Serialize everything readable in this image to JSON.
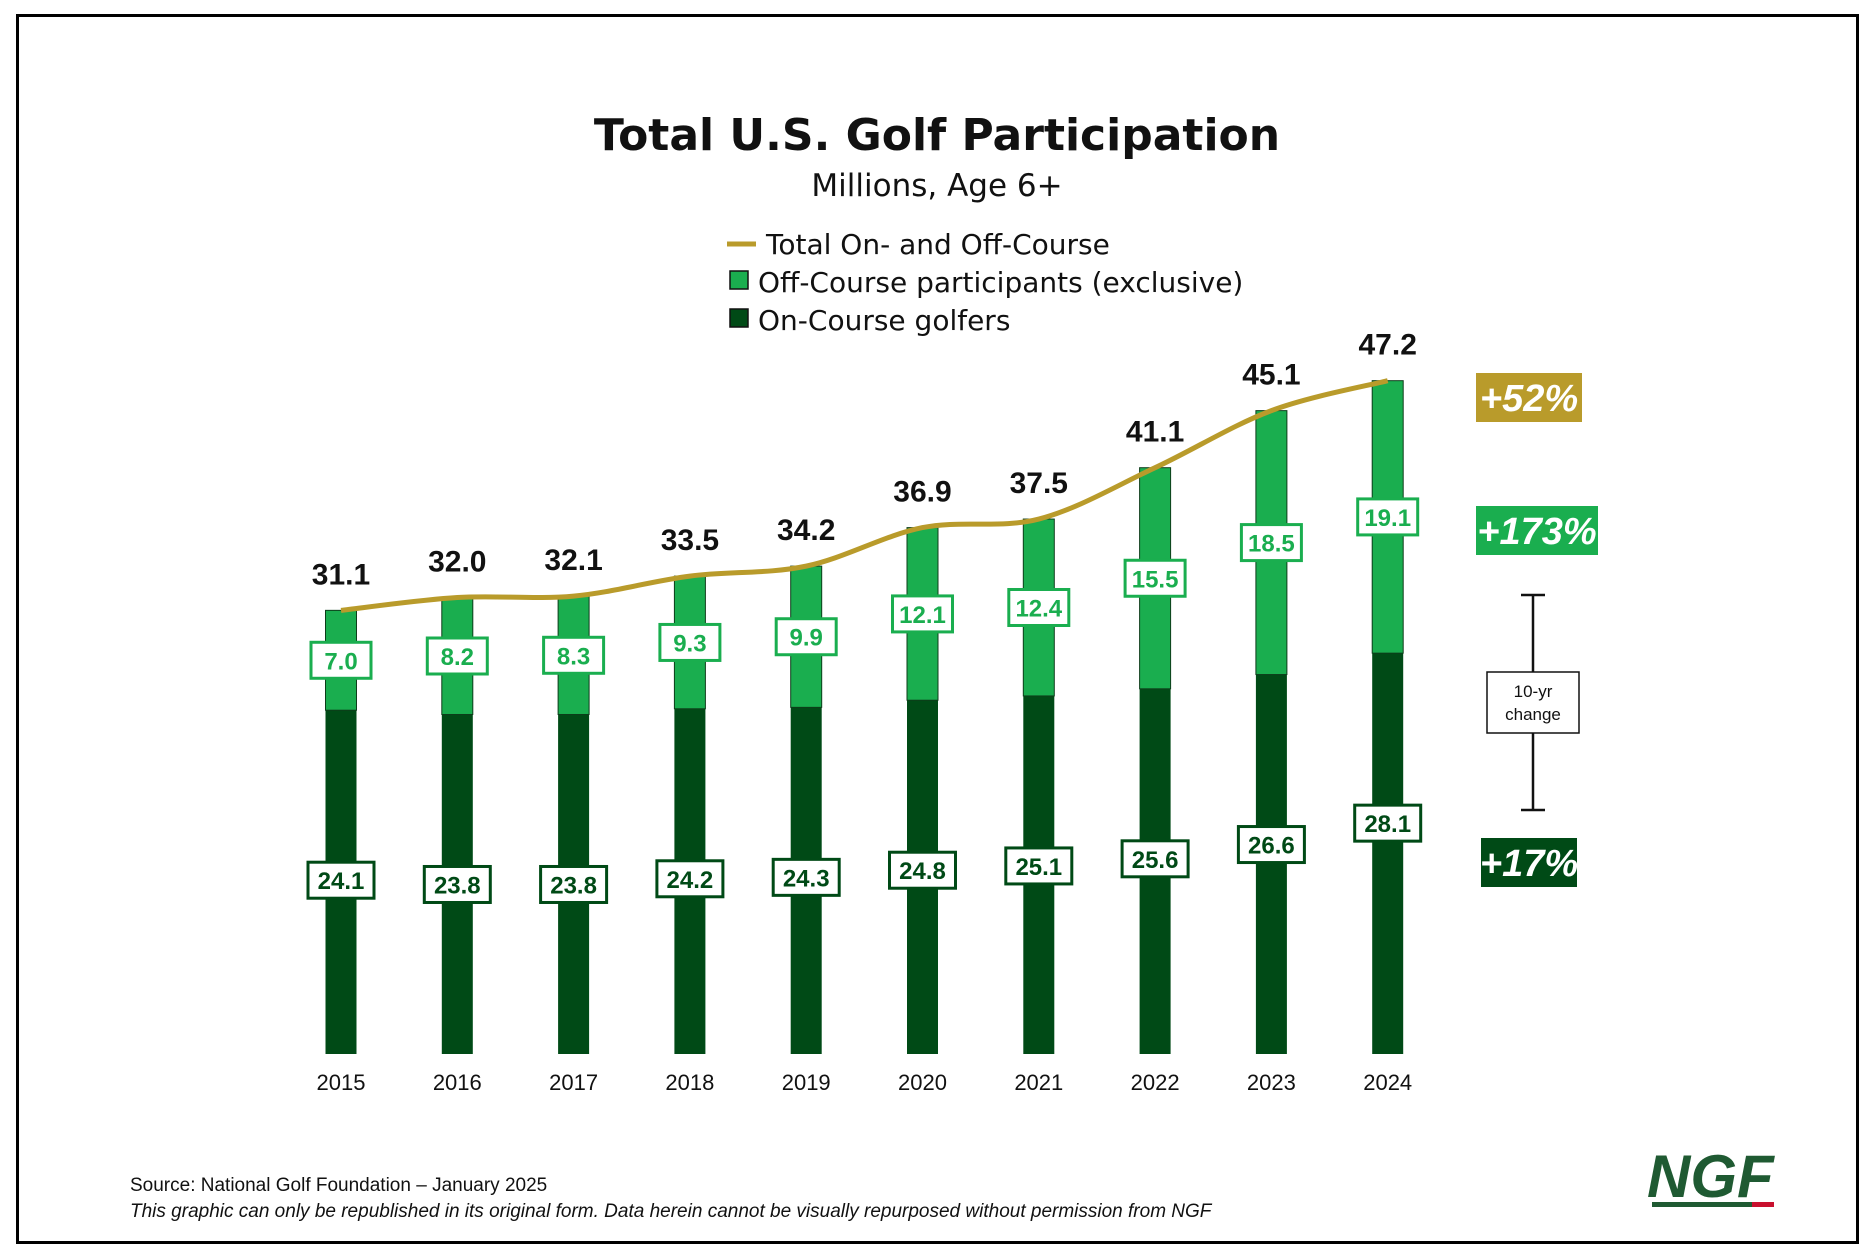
{
  "chart_data": {
    "type": "bar",
    "title": "Total U.S. Golf Participation",
    "subtitle": "Millions, Age 6+",
    "categories": [
      "2015",
      "2016",
      "2017",
      "2018",
      "2019",
      "2020",
      "2021",
      "2022",
      "2023",
      "2024"
    ],
    "series": [
      {
        "name": "On-Course golfers",
        "values": [
          24.1,
          23.8,
          23.8,
          24.2,
          24.3,
          24.8,
          25.1,
          25.6,
          26.6,
          28.1
        ],
        "color": "#004a16",
        "style": "stacked-bar"
      },
      {
        "name": "Off-Course participants (exclusive)",
        "values": [
          7.0,
          8.2,
          8.3,
          9.3,
          9.9,
          12.1,
          12.4,
          15.5,
          18.5,
          19.1
        ],
        "color": "#1aae4f",
        "style": "stacked-bar"
      },
      {
        "name": "Total On- and Off-Course",
        "values": [
          31.1,
          32.0,
          32.1,
          33.5,
          34.2,
          36.9,
          37.5,
          41.1,
          45.1,
          47.2
        ],
        "color": "#b99b2b",
        "style": "line"
      }
    ],
    "legend": [
      "Total On- and Off-Course",
      "Off-Course participants (exclusive)",
      "On-Course golfers"
    ],
    "legend_position": "top-center",
    "ylim": [
      0,
      49
    ],
    "grid": false,
    "annotations": {
      "bracket_label_line1": "10-yr",
      "bracket_label_line2": "change",
      "changes": [
        {
          "text": "+52%",
          "series": "Total On- and Off-Course",
          "color": "#b99b2b"
        },
        {
          "text": "+173%",
          "series": "Off-Course participants (exclusive)",
          "color": "#1aae4f"
        },
        {
          "text": "+17%",
          "series": "On-Course golfers",
          "color": "#004a16"
        }
      ]
    }
  },
  "footer": {
    "source": "Source: National Golf Foundation – January 2025",
    "note": "This graphic can only be republished in its original form. Data herein cannot be visually repurposed without permission from NGF"
  },
  "logo": {
    "text": "NGF",
    "underline_color": "#c8102e"
  }
}
